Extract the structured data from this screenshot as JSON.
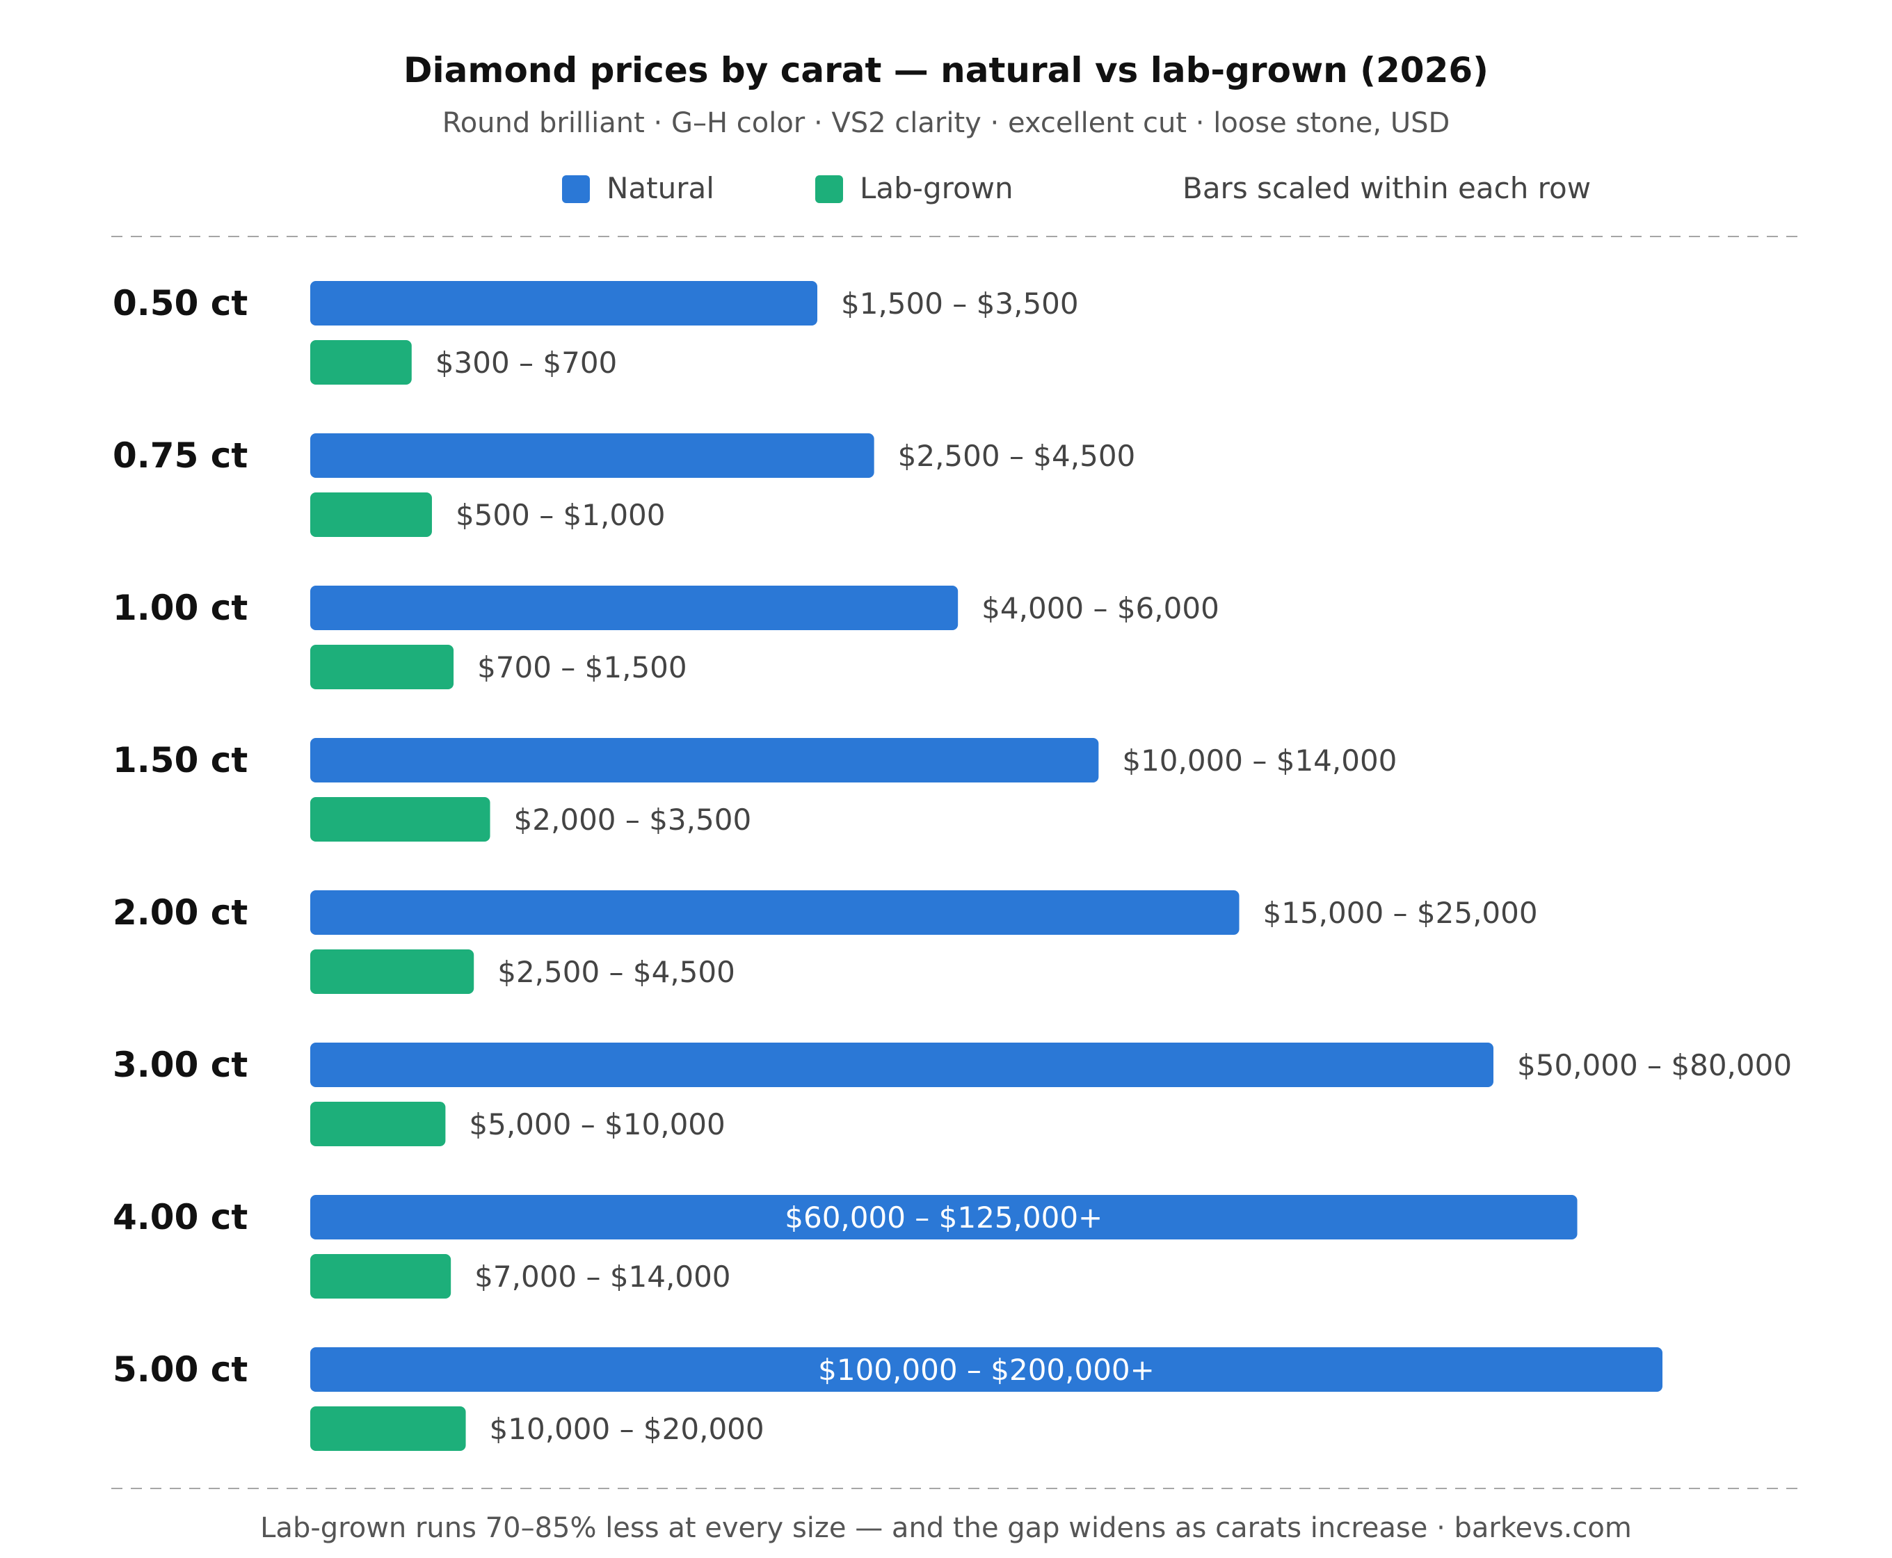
{
  "chart_data": {
    "type": "bar",
    "title": "Diamond prices by carat — natural vs lab-grown (2026)",
    "subtitle": "Round brilliant · G–H color · VS2 clarity · excellent cut · loose stone, USD",
    "legend": {
      "placement": "top",
      "entries": [
        "Natural",
        "Lab-grown"
      ],
      "note": "Bars scaled within each row"
    },
    "colors": {
      "natural": "#2b78d6",
      "lab_grown": "#1daf7a",
      "text": "#111111",
      "label": "#444444",
      "divider": "#a6a6a6",
      "inner_label": "#ffffff"
    },
    "categories": [
      "0.50 ct",
      "0.75 ct",
      "1.00 ct",
      "1.50 ct",
      "2.00 ct",
      "3.00 ct",
      "4.00 ct",
      "5.00 ct"
    ],
    "series": [
      {
        "name": "Natural",
        "color": "#2b78d6",
        "fill_fraction": [
          0.375,
          0.417,
          0.479,
          0.583,
          0.687,
          0.875,
          0.937,
          1.0
        ],
        "labels": [
          "$1,500 – $3,500",
          "$2,500 – $4,500",
          "$4,000 – $6,000",
          "$10,000 – $14,000",
          "$15,000 – $25,000",
          "$50,000 – $80,000",
          "$60,000 – $125,000+",
          "$100,000 – $200,000+"
        ],
        "label_inside": [
          false,
          false,
          false,
          false,
          false,
          false,
          true,
          true
        ]
      },
      {
        "name": "Lab-grown",
        "color": "#1daf7a",
        "fill_fraction": [
          0.075,
          0.09,
          0.106,
          0.133,
          0.121,
          0.1,
          0.104,
          0.115
        ],
        "labels": [
          "$300 – $700",
          "$500 – $1,000",
          "$700 – $1,500",
          "$2,000 – $3,500",
          "$2,500 – $4,500",
          "$5,000 – $10,000",
          "$7,000 – $14,000",
          "$10,000 – $20,000"
        ],
        "label_inside": [
          false,
          false,
          false,
          false,
          false,
          false,
          false,
          false
        ]
      }
    ],
    "grid": false,
    "footer": "Lab-grown runs 70–85% less at every size — and the gap widens as carats increase · barkevs.com"
  }
}
